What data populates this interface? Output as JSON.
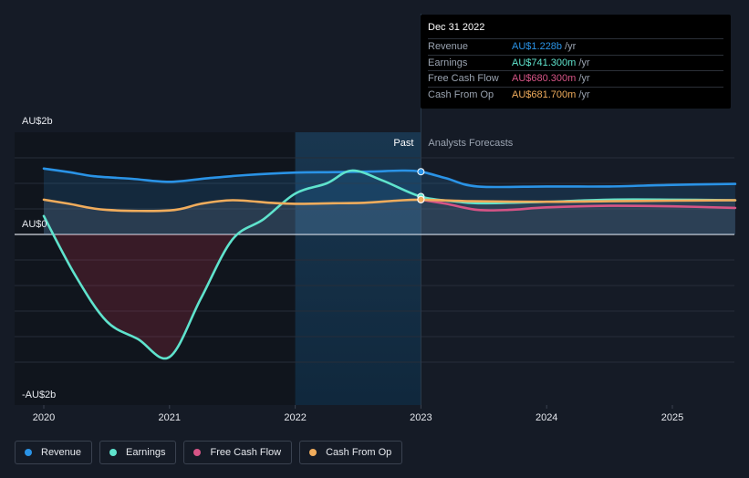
{
  "tooltip": {
    "date": "Dec 31 2022",
    "rows": [
      {
        "label": "Revenue",
        "value": "AU$1.228b",
        "unit": "/yr",
        "color": "#2a93e6"
      },
      {
        "label": "Earnings",
        "value": "AU$741.300m",
        "unit": "/yr",
        "color": "#5fe3cd"
      },
      {
        "label": "Free Cash Flow",
        "value": "AU$680.300m",
        "unit": "/yr",
        "color": "#d65486"
      },
      {
        "label": "Cash From Op",
        "value": "AU$681.700m",
        "unit": "/yr",
        "color": "#f0ac5c"
      }
    ]
  },
  "legend": [
    {
      "label": "Revenue",
      "color": "#2a93e6"
    },
    {
      "label": "Earnings",
      "color": "#5fe3cd"
    },
    {
      "label": "Free Cash Flow",
      "color": "#d65486"
    },
    {
      "label": "Cash From Op",
      "color": "#f0ac5c"
    }
  ],
  "chart_data": {
    "type": "line",
    "y_tick_labels": [
      "AU$2b",
      "AU$0",
      "-AU$2b"
    ],
    "x_tick_labels": [
      "2020",
      "2021",
      "2022",
      "2023",
      "2024",
      "2025"
    ],
    "past_label": "Past",
    "forecast_label": "Analysts Forecasts",
    "past_end": 2023.0,
    "highlight_start": 2022.0,
    "xlim": [
      2019.8,
      2025.5
    ],
    "ylim": [
      -2.5,
      1.5
    ],
    "units": "AU$ billions",
    "legend_position": "bottom-left",
    "grid": true,
    "series": [
      {
        "name": "Revenue",
        "color": "#2a93e6",
        "x": [
          2020.0,
          2020.2,
          2020.4,
          2020.7,
          2021.0,
          2021.3,
          2021.6,
          2022.0,
          2022.3,
          2022.6,
          2022.85,
          2023.0,
          2023.2,
          2023.45,
          2024.0,
          2024.5,
          2025.0,
          2025.5
        ],
        "y": [
          1.29,
          1.22,
          1.14,
          1.09,
          1.03,
          1.1,
          1.16,
          1.21,
          1.22,
          1.23,
          1.25,
          1.228,
          1.1,
          0.94,
          0.94,
          0.94,
          0.97,
          0.99
        ]
      },
      {
        "name": "Earnings",
        "color": "#5fe3cd",
        "x": [
          2020.0,
          2020.25,
          2020.5,
          2020.75,
          2021.0,
          2021.25,
          2021.5,
          2021.75,
          2022.0,
          2022.25,
          2022.45,
          2022.7,
          2023.0,
          2023.3,
          2023.5,
          2024.0,
          2024.5,
          2025.0,
          2025.5
        ],
        "y": [
          0.36,
          -0.8,
          -1.7,
          -2.05,
          -2.4,
          -1.25,
          -0.1,
          0.3,
          0.8,
          1.0,
          1.25,
          1.05,
          0.74,
          0.64,
          0.61,
          0.64,
          0.68,
          0.68,
          0.67
        ]
      },
      {
        "name": "Free Cash Flow",
        "color": "#d65486",
        "x": [
          2023.0,
          2023.2,
          2023.45,
          2023.7,
          2024.0,
          2024.5,
          2025.0,
          2025.5
        ],
        "y": [
          0.68,
          0.6,
          0.48,
          0.48,
          0.53,
          0.56,
          0.55,
          0.52
        ]
      },
      {
        "name": "Cash From Op",
        "color": "#f0ac5c",
        "x": [
          2020.0,
          2020.2,
          2020.5,
          2021.0,
          2021.25,
          2021.5,
          2021.8,
          2022.0,
          2022.3,
          2022.55,
          2022.8,
          2023.0,
          2023.4,
          2024.0,
          2024.5,
          2025.0,
          2025.5
        ],
        "y": [
          0.68,
          0.6,
          0.48,
          0.47,
          0.6,
          0.67,
          0.62,
          0.6,
          0.61,
          0.62,
          0.66,
          0.68,
          0.65,
          0.64,
          0.65,
          0.66,
          0.67
        ]
      }
    ],
    "tooltip_markers": [
      {
        "series": "Revenue",
        "x": 2023.0,
        "y": 1.228
      },
      {
        "series": "Earnings",
        "x": 2023.0,
        "y": 0.741
      },
      {
        "series": "Free Cash Flow",
        "x": 2023.0,
        "y": 0.68
      },
      {
        "series": "Cash From Op",
        "x": 2023.0,
        "y": 0.682
      }
    ]
  }
}
